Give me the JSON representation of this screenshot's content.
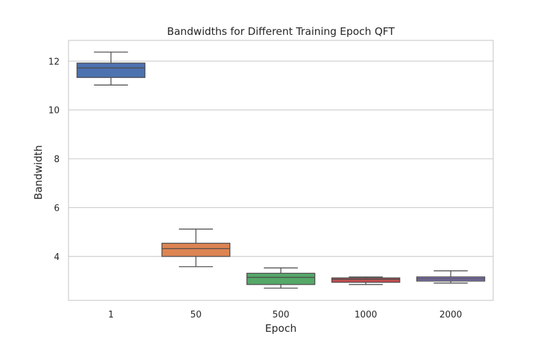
{
  "chart_data": {
    "type": "box",
    "title": "Bandwidths for Different Training Epoch QFT",
    "xlabel": "Epoch",
    "ylabel": "Bandwidth",
    "ylim": [
      2.2,
      12.85
    ],
    "yticks": [
      "4",
      "6",
      "8",
      "10",
      "12"
    ],
    "ytick_values": [
      4,
      6,
      8,
      10,
      12
    ],
    "grid": "horizontal",
    "categories": [
      "1",
      "50",
      "500",
      "1000",
      "2000"
    ],
    "boxes": [
      {
        "category": "1",
        "whisker_low": 11.02,
        "q1": 11.33,
        "median": 11.72,
        "q3": 11.92,
        "whisker_high": 12.37,
        "color": "#4c72b0"
      },
      {
        "category": "50",
        "whisker_low": 3.58,
        "q1": 4.0,
        "median": 4.32,
        "q3": 4.54,
        "whisker_high": 5.12,
        "color": "#dd8452"
      },
      {
        "category": "500",
        "whisker_low": 2.7,
        "q1": 2.85,
        "median": 3.14,
        "q3": 3.31,
        "whisker_high": 3.53,
        "color": "#55a868"
      },
      {
        "category": "1000",
        "whisker_low": 2.85,
        "q1": 2.94,
        "median": 3.06,
        "q3": 3.12,
        "whisker_high": 3.16,
        "color": "#c44e52"
      },
      {
        "category": "2000",
        "whisker_low": 2.91,
        "q1": 2.99,
        "median": 3.08,
        "q3": 3.16,
        "whisker_high": 3.41,
        "color": "#8172b3"
      }
    ]
  }
}
